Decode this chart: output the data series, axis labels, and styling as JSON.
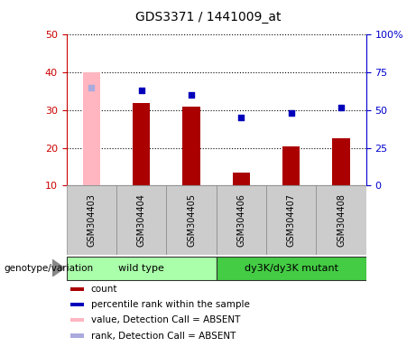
{
  "title": "GDS3371 / 1441009_at",
  "samples": [
    "GSM304403",
    "GSM304404",
    "GSM304405",
    "GSM304406",
    "GSM304407",
    "GSM304408"
  ],
  "count_values": [
    null,
    32,
    31,
    13.5,
    20.5,
    22.5
  ],
  "count_absent": [
    40.0,
    null,
    null,
    null,
    null,
    null
  ],
  "percentile_values": [
    null,
    63,
    60,
    45,
    48,
    52
  ],
  "percentile_absent": [
    65,
    null,
    null,
    null,
    null,
    null
  ],
  "ylim_left": [
    10,
    50
  ],
  "ylim_right": [
    0,
    100
  ],
  "yticks_left": [
    10,
    20,
    30,
    40,
    50
  ],
  "yticks_right": [
    0,
    25,
    50,
    75,
    100
  ],
  "yticklabels_right": [
    "0",
    "25",
    "50",
    "75",
    "100%"
  ],
  "bar_color": "#AA0000",
  "bar_absent_color": "#FFB6C1",
  "dot_color": "#0000BB",
  "dot_absent_color": "#AAAADD",
  "wild_type_color": "#AAFFAA",
  "mutant_color": "#44CC44",
  "group_label": "genotype/variation",
  "legend_items": [
    {
      "label": "count",
      "color": "#AA0000"
    },
    {
      "label": "percentile rank within the sample",
      "color": "#0000BB"
    },
    {
      "label": "value, Detection Call = ABSENT",
      "color": "#FFB6C1"
    },
    {
      "label": "rank, Detection Call = ABSENT",
      "color": "#AAAADD"
    }
  ],
  "bar_width": 0.35,
  "axis_color_left": "#CC0000",
  "axis_color_right": "#0000CC",
  "background_color": "#ffffff",
  "sample_box_color": "#CCCCCC",
  "sample_box_edge": "#888888"
}
